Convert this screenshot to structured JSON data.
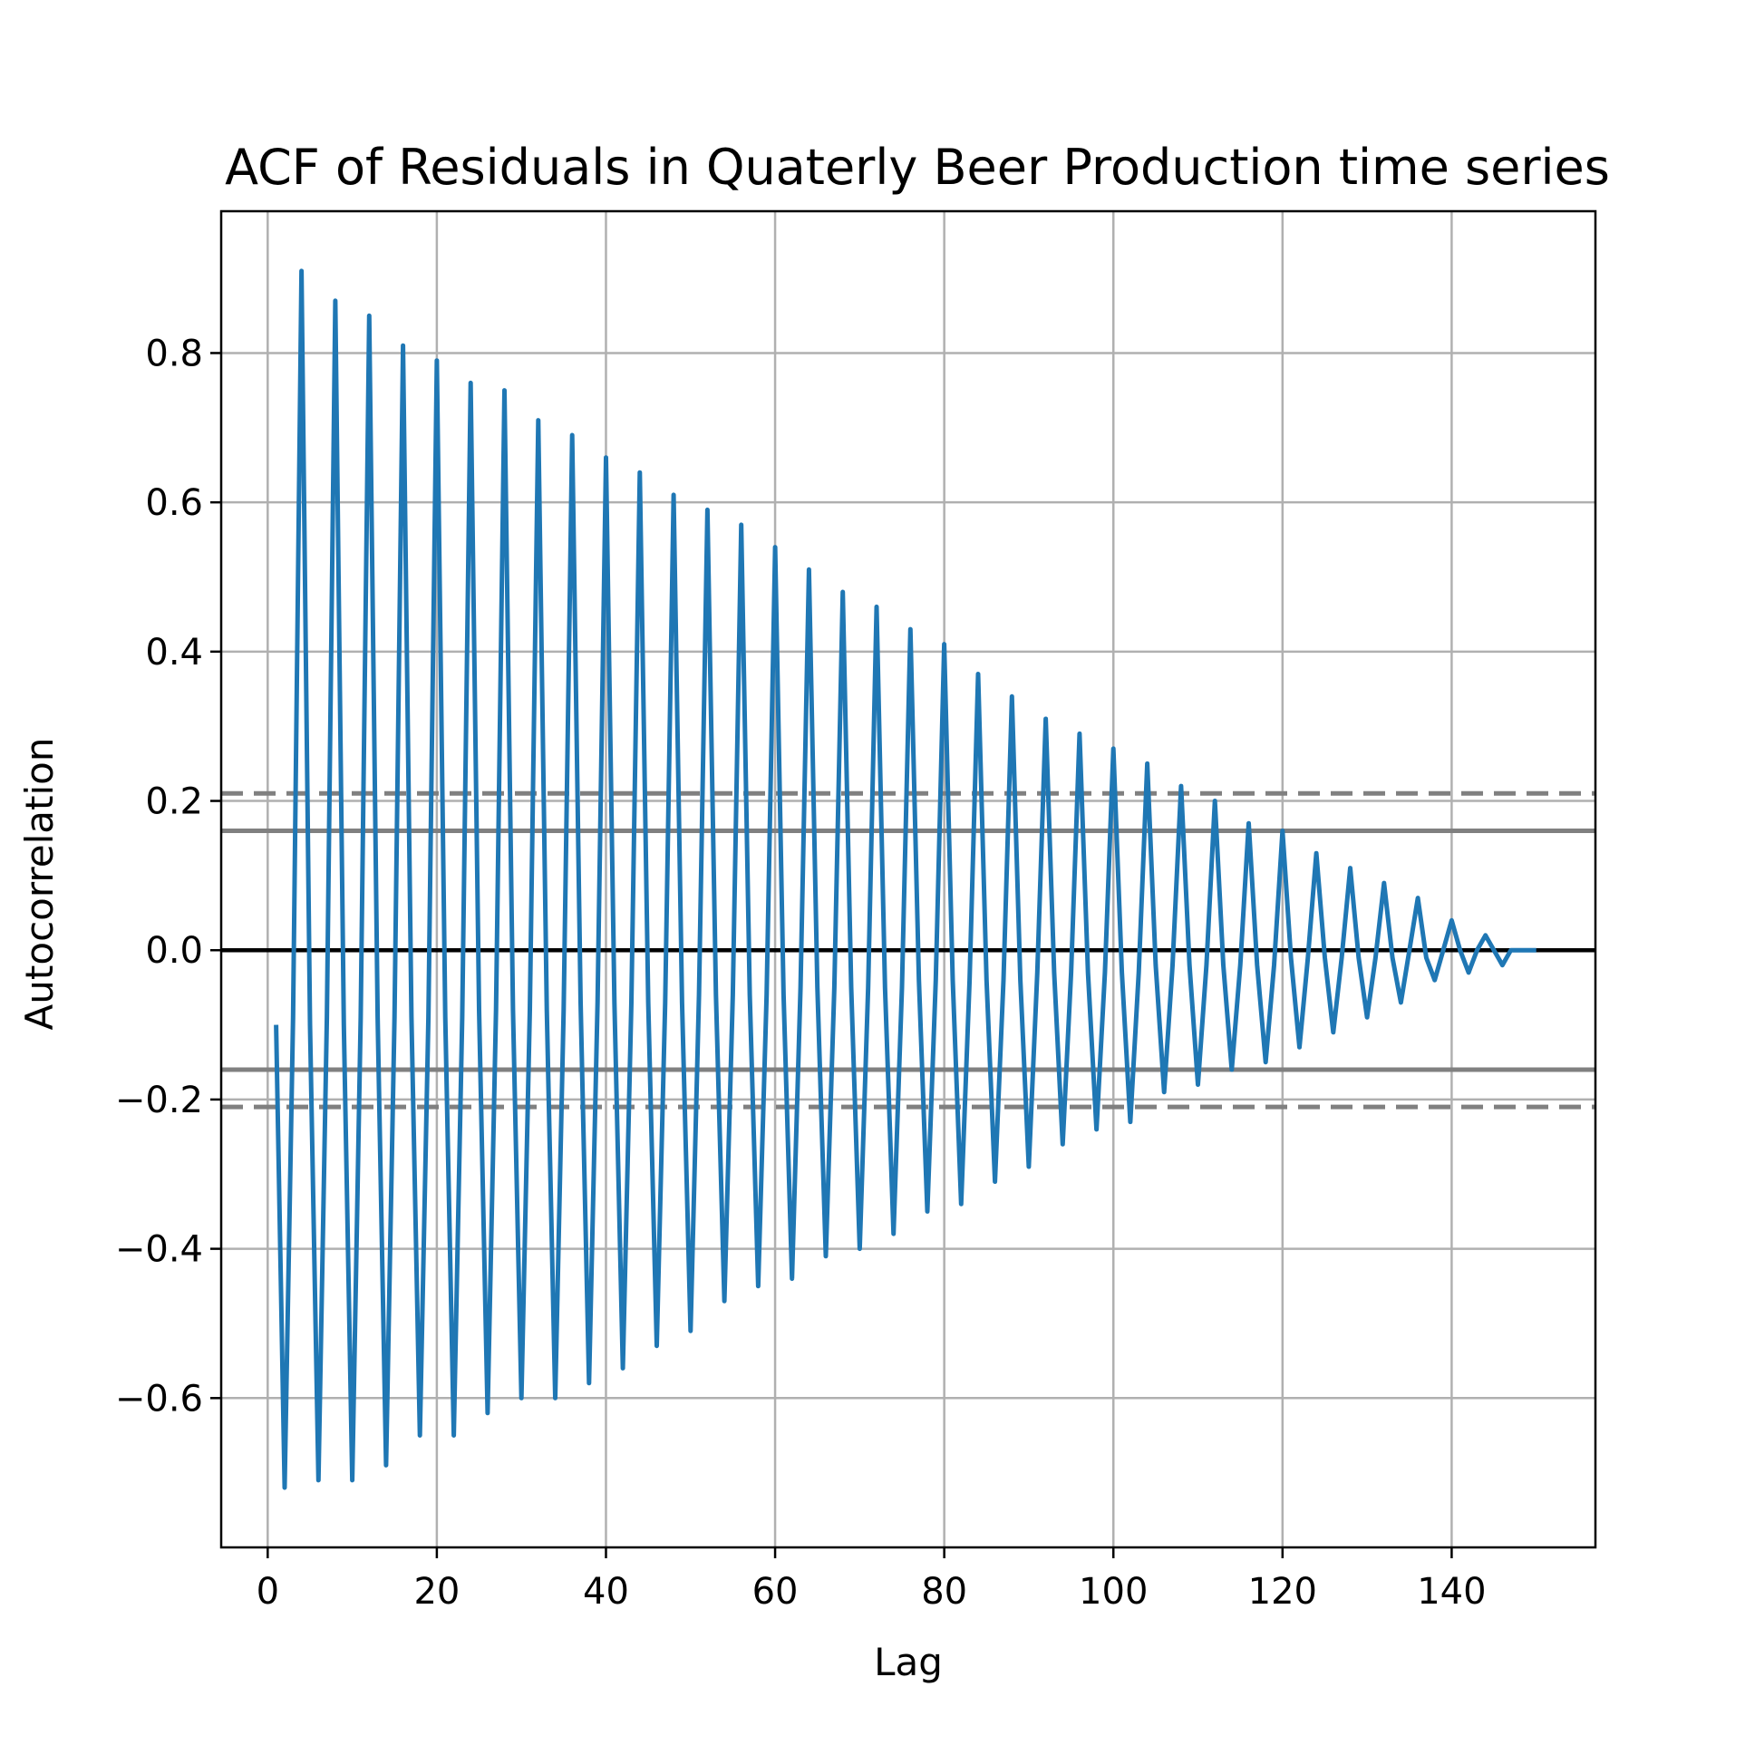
{
  "chart_data": {
    "type": "line",
    "title": "ACF of Residuals in Quaterly Beer Production time series",
    "xlabel": "Lag",
    "ylabel": "Autocorrelation",
    "xlim": [
      -5.5,
      157
    ],
    "ylim": [
      -0.8,
      0.99
    ],
    "xticks": [
      0,
      20,
      40,
      60,
      80,
      100,
      120,
      140
    ],
    "xtick_labels": [
      "0",
      "20",
      "40",
      "60",
      "80",
      "100",
      "120",
      "140"
    ],
    "yticks": [
      -0.6,
      -0.4,
      -0.2,
      0.0,
      0.2,
      0.4,
      0.6,
      0.8
    ],
    "ytick_labels": [
      "−0.6",
      "−0.4",
      "−0.2",
      "0.0",
      "0.2",
      "0.4",
      "0.6",
      "0.8"
    ],
    "grid": true,
    "reference_lines": {
      "zero": 0.0,
      "confidence_95": 0.16,
      "confidence_99": 0.21
    },
    "colors": {
      "series": "#1f77b4",
      "grid": "#b0b0b0",
      "confidence": "#808080",
      "zero": "#000000"
    },
    "series": [
      {
        "x": [
          1,
          2,
          3,
          4,
          5,
          6,
          7,
          8,
          9,
          10,
          11,
          12,
          13,
          14,
          15,
          16,
          17,
          18,
          19,
          20,
          21,
          22,
          23,
          24,
          25,
          26,
          27,
          28,
          29,
          30,
          31,
          32,
          33,
          34,
          35,
          36,
          37,
          38,
          39,
          40,
          41,
          42,
          43,
          44,
          45,
          46,
          47,
          48,
          49,
          50,
          51,
          52,
          53,
          54,
          55,
          56,
          57,
          58,
          59,
          60,
          61,
          62,
          63,
          64,
          65,
          66,
          67,
          68,
          69,
          70,
          71,
          72,
          73,
          74,
          75,
          76,
          77,
          78,
          79,
          80,
          81,
          82,
          83,
          84,
          85,
          86,
          87,
          88,
          89,
          90,
          91,
          92,
          93,
          94,
          95,
          96,
          97,
          98,
          99,
          100,
          101,
          102,
          103,
          104,
          105,
          106,
          107,
          108,
          109,
          110,
          111,
          112,
          113,
          114,
          115,
          116,
          117,
          118,
          119,
          120,
          121,
          122,
          123,
          124,
          125,
          126,
          127,
          128,
          129,
          130,
          131,
          132,
          133,
          134,
          135,
          136,
          137,
          138,
          139,
          140,
          141,
          142,
          143,
          144,
          145,
          146,
          147,
          148,
          149,
          150
        ],
        "y": [
          -0.1,
          -0.72,
          -0.09,
          0.91,
          -0.1,
          -0.71,
          -0.09,
          0.87,
          -0.1,
          -0.71,
          -0.09,
          0.85,
          -0.09,
          -0.69,
          -0.09,
          0.81,
          -0.09,
          -0.65,
          -0.09,
          0.79,
          -0.09,
          -0.65,
          -0.09,
          0.76,
          -0.08,
          -0.62,
          -0.08,
          0.75,
          -0.08,
          -0.6,
          -0.08,
          0.71,
          -0.08,
          -0.6,
          -0.08,
          0.69,
          -0.07,
          -0.58,
          -0.07,
          0.66,
          -0.07,
          -0.56,
          -0.07,
          0.64,
          -0.07,
          -0.53,
          -0.07,
          0.61,
          -0.07,
          -0.51,
          -0.06,
          0.59,
          -0.06,
          -0.47,
          -0.06,
          0.57,
          -0.06,
          -0.45,
          -0.06,
          0.54,
          -0.06,
          -0.44,
          -0.05,
          0.51,
          -0.05,
          -0.41,
          -0.05,
          0.48,
          -0.05,
          -0.4,
          -0.05,
          0.46,
          -0.05,
          -0.38,
          -0.05,
          0.43,
          -0.04,
          -0.35,
          -0.04,
          0.41,
          -0.04,
          -0.34,
          -0.04,
          0.37,
          -0.04,
          -0.31,
          -0.04,
          0.34,
          -0.04,
          -0.29,
          -0.03,
          0.31,
          -0.03,
          -0.26,
          -0.03,
          0.29,
          -0.03,
          -0.24,
          -0.03,
          0.27,
          -0.03,
          -0.23,
          -0.03,
          0.25,
          -0.02,
          -0.19,
          -0.02,
          0.22,
          -0.02,
          -0.18,
          -0.02,
          0.2,
          -0.02,
          -0.16,
          -0.02,
          0.17,
          -0.02,
          -0.15,
          -0.02,
          0.16,
          -0.01,
          -0.13,
          -0.01,
          0.13,
          -0.01,
          -0.11,
          -0.01,
          0.11,
          -0.01,
          -0.09,
          -0.01,
          0.09,
          -0.01,
          -0.07,
          0.0,
          0.07,
          -0.01,
          -0.04,
          0.0,
          0.04,
          0.0,
          -0.03,
          0.0,
          0.02,
          0.0,
          -0.02,
          0.0,
          0.0,
          0.0,
          0.0
        ]
      }
    ]
  }
}
